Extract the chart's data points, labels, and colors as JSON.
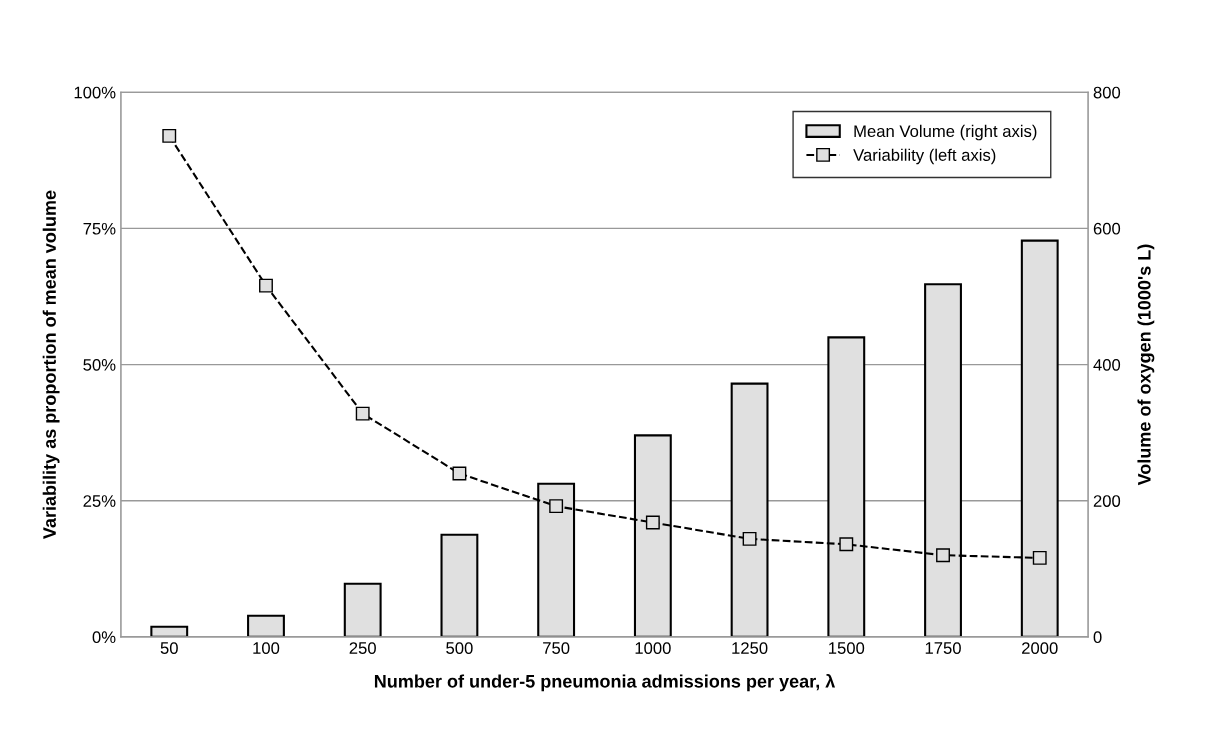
{
  "chart_data": {
    "type": "bar",
    "xlabel": "Number of under-5 pneumonia admissions per year, λ",
    "ylabel": "Variability as proportion of mean volume",
    "y2label": "Volume of oxygen (1000's L)",
    "categories": [
      "50",
      "100",
      "250",
      "500",
      "750",
      "1000",
      "1250",
      "1500",
      "1750",
      "2000"
    ],
    "series": [
      {
        "name": "Mean Volume (right axis)",
        "axis": "y2",
        "color": "#e0e0e0",
        "values": [
          15,
          31,
          78,
          150,
          225,
          296,
          372,
          440,
          518,
          582
        ]
      },
      {
        "name": "Variability (left axis)",
        "type": "line",
        "axis": "y",
        "color": "#000000",
        "marker": "square",
        "line_style": "dashed",
        "values": [
          92,
          64.5,
          41,
          30,
          24,
          21,
          18,
          17,
          15,
          14.5
        ]
      }
    ],
    "ylim": [
      0,
      100
    ],
    "yticks": [
      {
        "value": 0,
        "label": "0%"
      },
      {
        "value": 25,
        "label": "25%"
      },
      {
        "value": 50,
        "label": "50%"
      },
      {
        "value": 75,
        "label": "75%"
      },
      {
        "value": 100,
        "label": "100%"
      }
    ],
    "y2lim": [
      0,
      800
    ],
    "y2ticks": [
      0,
      200,
      400,
      600,
      800
    ],
    "grid": "y",
    "legend": "top right"
  }
}
